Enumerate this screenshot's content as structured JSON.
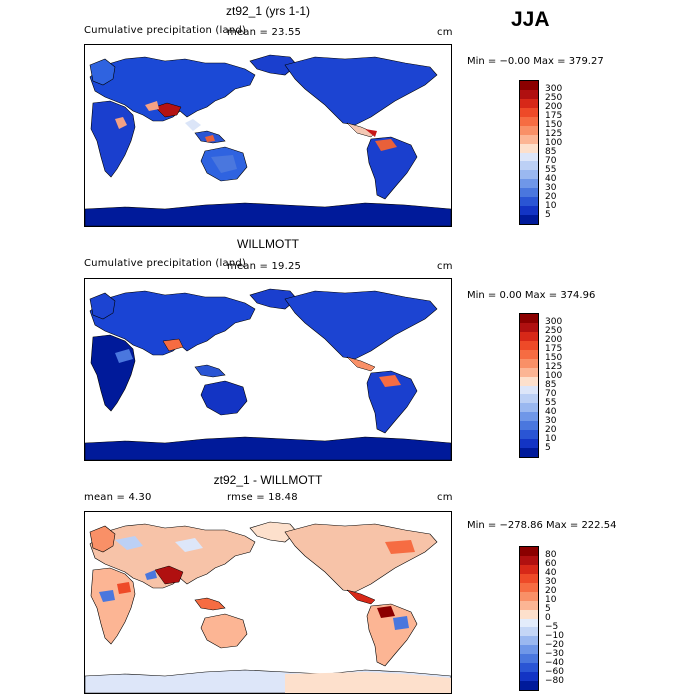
{
  "season": "JJA",
  "panels": [
    {
      "id": "model",
      "title": "zt92_1 (yrs 1-1)",
      "subtitle_left": "Cumulative precipitation (land)",
      "stat_text": "mean =   23.55",
      "units": "cm",
      "minmax": "Min =   −0.00 Max = 379.27",
      "colorbar_labels": [
        "300",
        "250",
        "200",
        "175",
        "150",
        "125",
        "100",
        "85",
        "70",
        "55",
        "40",
        "30",
        "20",
        "10",
        "5"
      ],
      "colorbar_colors": [
        "#8b0000",
        "#b01010",
        "#d72818",
        "#ee4a28",
        "#f66c42",
        "#f99067",
        "#fcb594",
        "#fde0cc",
        "#dde6f9",
        "#bcd0f5",
        "#9ab8f0",
        "#6f97e8",
        "#4a77de",
        "#2a55d4",
        "#1334c4",
        "#001a9a"
      ]
    },
    {
      "id": "obs",
      "title": "WILLMOTT",
      "subtitle_left": "Cumulative precipitation (land)",
      "stat_text": "mean =   19.25",
      "units": "cm",
      "minmax": "Min =    0.00 Max = 374.96",
      "colorbar_labels": [
        "300",
        "250",
        "200",
        "175",
        "150",
        "125",
        "100",
        "85",
        "70",
        "55",
        "40",
        "30",
        "20",
        "10",
        "5"
      ],
      "colorbar_colors": [
        "#8b0000",
        "#b01010",
        "#d72818",
        "#ee4a28",
        "#f66c42",
        "#f99067",
        "#fcb594",
        "#fde0cc",
        "#dde6f9",
        "#bcd0f5",
        "#9ab8f0",
        "#6f97e8",
        "#4a77de",
        "#2a55d4",
        "#1334c4",
        "#001a9a"
      ]
    },
    {
      "id": "diff",
      "title": "zt92_1 - WILLMOTT",
      "stat_text": "mean =    4.30",
      "stat_text2": "rmse =   18.48",
      "units": "cm",
      "minmax": "Min = −278.86 Max = 222.54",
      "colorbar_labels": [
        "80",
        "60",
        "40",
        "30",
        "20",
        "10",
        "5",
        "0",
        "−5",
        "−10",
        "−20",
        "−30",
        "−40",
        "−60",
        "−80"
      ],
      "colorbar_colors": [
        "#8b0000",
        "#b01010",
        "#d72818",
        "#ee4a28",
        "#f66c42",
        "#f99067",
        "#fcb594",
        "#fde0cc",
        "#e3ecfb",
        "#c4d6f6",
        "#9ab8f0",
        "#6f97e8",
        "#4a77de",
        "#2a55d4",
        "#1334c4",
        "#001a9a"
      ]
    }
  ]
}
